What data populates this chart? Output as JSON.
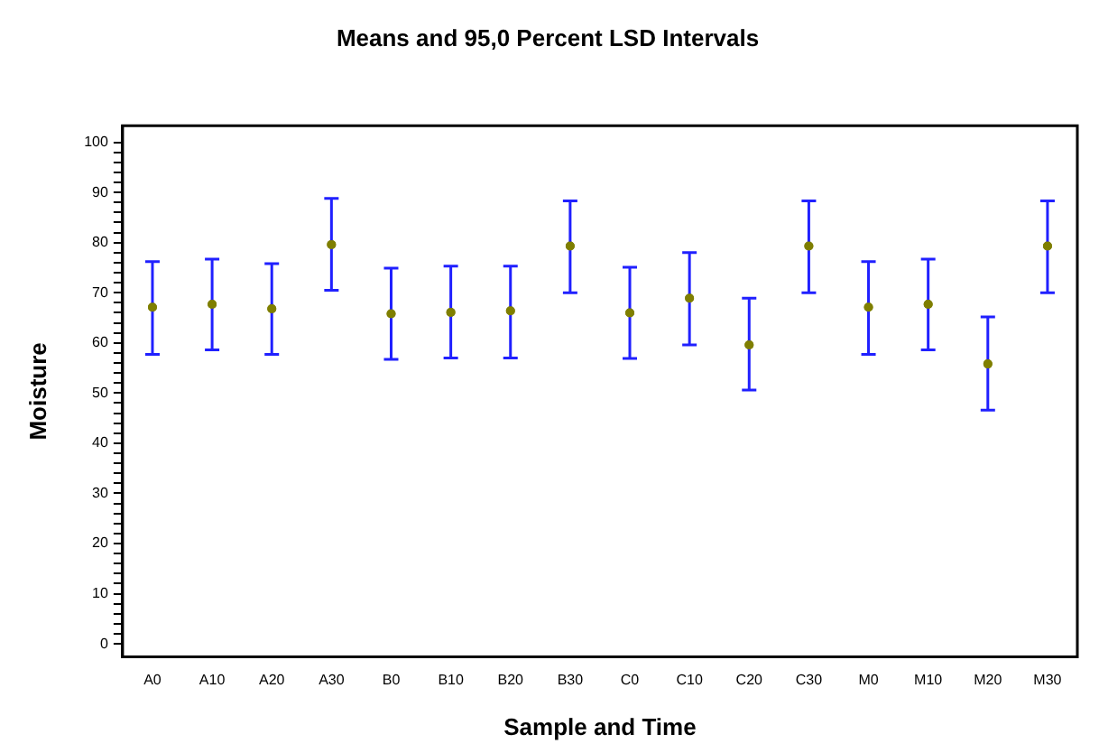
{
  "chart_data": {
    "type": "scatter",
    "title": "Means and 95,0 Percent LSD Intervals",
    "xlabel": "Sample and Time",
    "ylabel": "Moisture",
    "categories": [
      "A0",
      "A10",
      "A20",
      "A30",
      "B0",
      "B10",
      "B20",
      "B30",
      "C0",
      "C10",
      "C20",
      "C30",
      "M0",
      "M10",
      "M20",
      "M30"
    ],
    "series": [
      {
        "color": "#7f7f00",
        "values": [
          67.1,
          67.7,
          66.8,
          79.6,
          65.8,
          66.1,
          66.4,
          79.3,
          66.0,
          68.9,
          59.6,
          79.3,
          67.1,
          67.7,
          55.8,
          79.3
        ],
        "errors": [
          [
            57.7,
            76.2
          ],
          [
            58.6,
            76.7
          ],
          [
            57.7,
            75.8
          ],
          [
            70.5,
            88.8
          ],
          [
            56.7,
            74.9
          ],
          [
            57.0,
            75.3
          ],
          [
            57.0,
            75.3
          ],
          [
            70.0,
            88.3
          ],
          [
            56.9,
            75.1
          ],
          [
            59.6,
            78.0
          ],
          [
            50.6,
            68.9
          ],
          [
            70.0,
            88.3
          ],
          [
            57.7,
            76.2
          ],
          [
            58.6,
            76.7
          ],
          [
            46.6,
            65.2
          ],
          [
            70.0,
            88.3
          ]
        ]
      }
    ],
    "ylim": [
      -2.6,
      103.3
    ],
    "yticks": [
      0,
      {
        "value": 2,
        "label": null
      },
      {
        "value": 4,
        "label": null
      },
      {
        "value": 6,
        "label": null
      },
      {
        "value": 8,
        "label": null
      },
      10,
      {
        "value": 12,
        "label": null
      },
      {
        "value": 14,
        "label": null
      },
      {
        "value": 16,
        "label": null
      },
      {
        "value": 18,
        "label": null
      },
      20,
      {
        "value": 22,
        "label": null
      },
      {
        "value": 24,
        "label": null
      },
      {
        "value": 26,
        "label": null
      },
      {
        "value": 28,
        "label": null
      },
      30,
      {
        "value": 32,
        "label": null
      },
      {
        "value": 34,
        "label": null
      },
      {
        "value": 36,
        "label": null
      },
      {
        "value": 38,
        "label": null
      },
      40,
      {
        "value": 42,
        "label": null
      },
      {
        "value": 44,
        "label": null
      },
      {
        "value": 46,
        "label": null
      },
      {
        "value": 48,
        "label": null
      },
      50,
      {
        "value": 52,
        "label": null
      },
      {
        "value": 54,
        "label": null
      },
      {
        "value": 56,
        "label": null
      },
      {
        "value": 58,
        "label": null
      },
      60,
      {
        "value": 62,
        "label": null
      },
      {
        "value": 64,
        "label": null
      },
      {
        "value": 66,
        "label": null
      },
      {
        "value": 68,
        "label": null
      },
      70,
      {
        "value": 72,
        "label": null
      },
      {
        "value": 74,
        "label": null
      },
      {
        "value": 76,
        "label": null
      },
      {
        "value": 78,
        "label": null
      },
      80,
      {
        "value": 82,
        "label": null
      },
      {
        "value": 84,
        "label": null
      },
      {
        "value": 86,
        "label": null
      },
      {
        "value": 88,
        "label": null
      },
      90,
      {
        "value": 92,
        "label": null
      },
      {
        "value": 94,
        "label": null
      },
      {
        "value": 96,
        "label": null
      },
      {
        "value": 98,
        "label": null
      },
      100
    ],
    "grid": false,
    "legend": false,
    "marker": "circle"
  }
}
